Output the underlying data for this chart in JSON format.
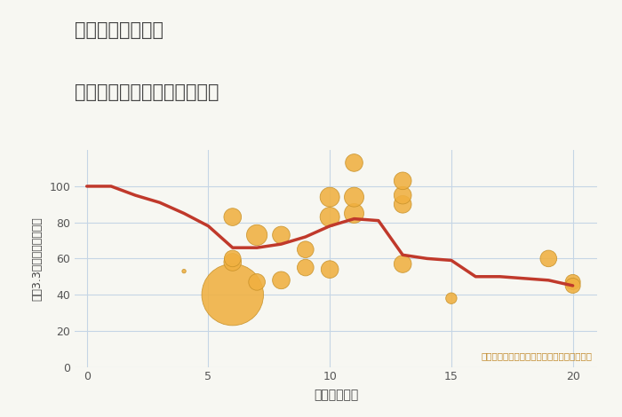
{
  "title_line1": "千葉県市原市中の",
  "title_line2": "駅距離別中古マンション価格",
  "xlabel": "駅距離（分）",
  "ylabel": "坪（3.3㎡）単価（万円）",
  "background_color": "#f7f7f2",
  "plot_bg_color": "#f7f7f2",
  "line_color": "#c0392b",
  "scatter_color": "#f0b040",
  "scatter_edge_color": "#c8922a",
  "annotation": "円の大きさは、取引のあった物件面積を示す",
  "annotation_color": "#c08828",
  "xlim": [
    -0.5,
    21
  ],
  "ylim": [
    0,
    120
  ],
  "xticks": [
    0,
    5,
    10,
    15,
    20
  ],
  "yticks": [
    0,
    20,
    40,
    60,
    80,
    100
  ],
  "line_x": [
    0,
    1,
    2,
    3,
    4,
    5,
    6,
    7,
    8,
    9,
    10,
    11,
    12,
    13,
    14,
    15,
    16,
    17,
    18,
    19,
    20
  ],
  "line_y": [
    100,
    100,
    95,
    91,
    85,
    78,
    66,
    66,
    68,
    72,
    78,
    82,
    81,
    62,
    60,
    59,
    50,
    50,
    49,
    48,
    45
  ],
  "scatter_x": [
    4,
    6,
    6,
    6,
    6,
    7,
    7,
    8,
    8,
    9,
    9,
    10,
    10,
    10,
    11,
    11,
    11,
    13,
    13,
    13,
    13,
    15,
    19,
    20,
    20
  ],
  "scatter_y": [
    53,
    40,
    58,
    60,
    83,
    47,
    73,
    48,
    73,
    55,
    65,
    54,
    83,
    94,
    85,
    94,
    113,
    57,
    90,
    95,
    103,
    38,
    60,
    47,
    45
  ],
  "scatter_size": [
    10,
    2500,
    200,
    180,
    200,
    180,
    280,
    200,
    200,
    180,
    180,
    200,
    250,
    250,
    250,
    250,
    200,
    200,
    200,
    200,
    200,
    80,
    180,
    150,
    150
  ]
}
